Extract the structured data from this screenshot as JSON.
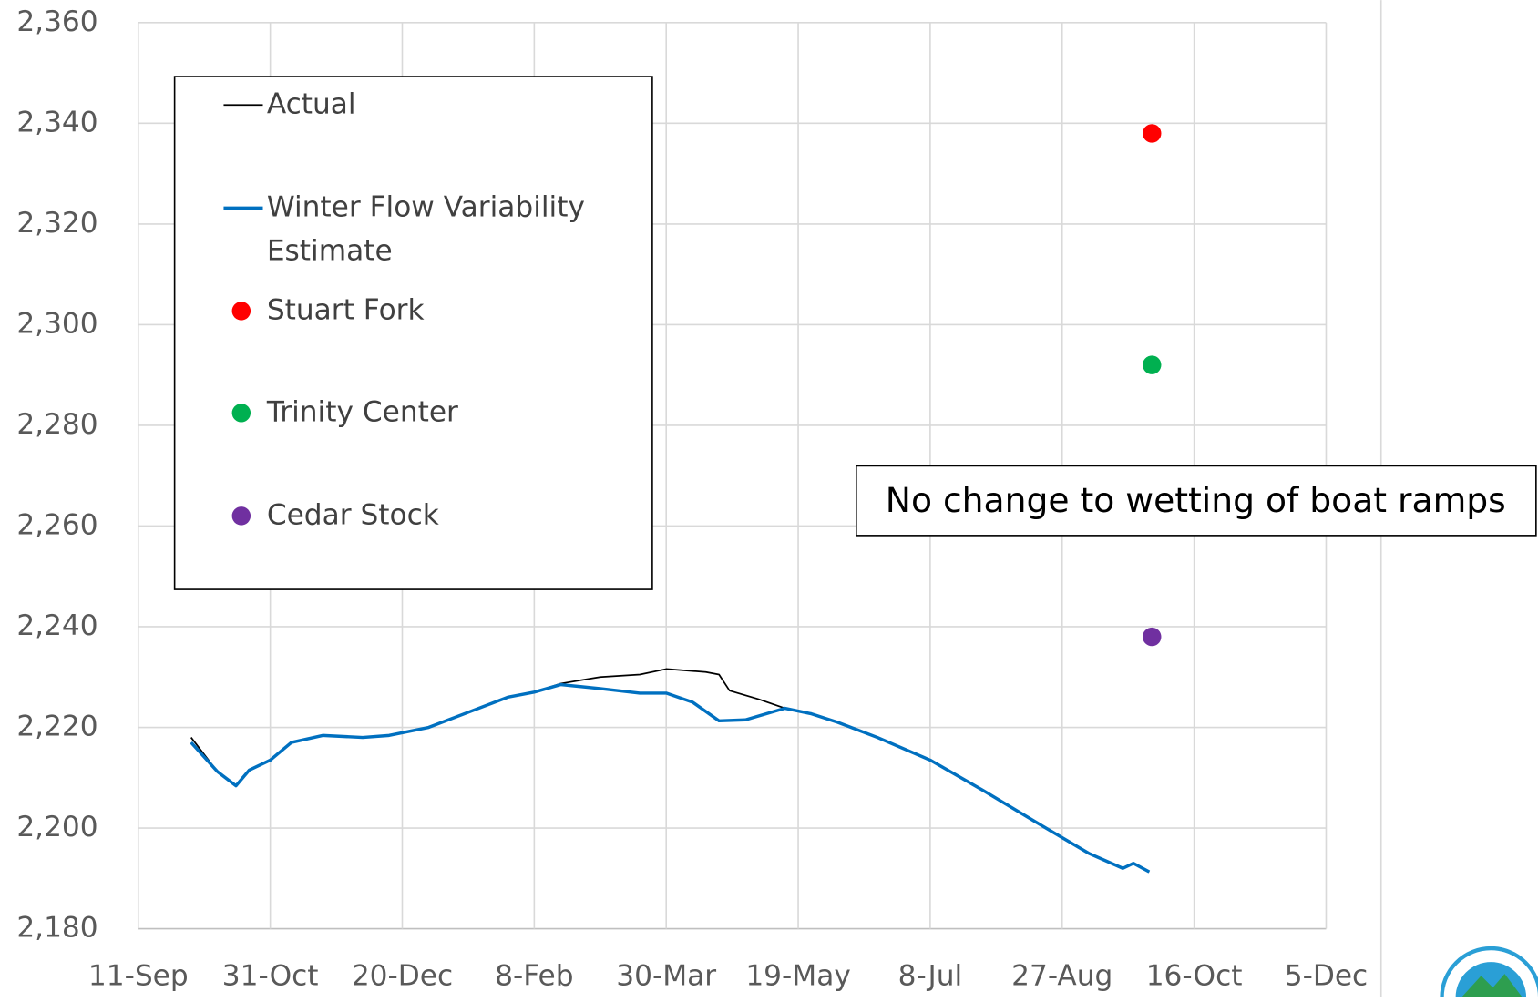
{
  "chart_data": {
    "type": "line",
    "xlim": [
      0,
      450
    ],
    "xticks": [
      {
        "value": 0,
        "label": "11-Sep"
      },
      {
        "value": 50,
        "label": "31-Oct"
      },
      {
        "value": 100,
        "label": "20-Dec"
      },
      {
        "value": 150,
        "label": "8-Feb"
      },
      {
        "value": 200,
        "label": "30-Mar"
      },
      {
        "value": 250,
        "label": "19-May"
      },
      {
        "value": 300,
        "label": "8-Jul"
      },
      {
        "value": 350,
        "label": "27-Aug"
      },
      {
        "value": 400,
        "label": "16-Oct"
      },
      {
        "value": 450,
        "label": "5-Dec"
      }
    ],
    "ylim": [
      2180,
      2360
    ],
    "yticks": [
      {
        "value": 2180,
        "label": "2,180"
      },
      {
        "value": 2200,
        "label": "2,200"
      },
      {
        "value": 2220,
        "label": "2,220"
      },
      {
        "value": 2240,
        "label": "2,240"
      },
      {
        "value": 2260,
        "label": "2,260"
      },
      {
        "value": 2280,
        "label": "2,280"
      },
      {
        "value": 2300,
        "label": "2,300"
      },
      {
        "value": 2320,
        "label": "2,320"
      },
      {
        "value": 2340,
        "label": "2,340"
      },
      {
        "value": 2360,
        "label": "2,360"
      }
    ],
    "grid": true,
    "legend": "upper left",
    "annotation": "No change to wetting of boat ramps",
    "series": [
      {
        "name": "Actual",
        "color": "#000000",
        "style": "line",
        "width": 1.6,
        "x": [
          20,
          30,
          37,
          42,
          50,
          58,
          70,
          85,
          95,
          110,
          125,
          140,
          150,
          160,
          175,
          190,
          200,
          215,
          220,
          224,
          235,
          245,
          255,
          265,
          280,
          300,
          320,
          340,
          360,
          373,
          377,
          383
        ],
        "values": [
          2218,
          2211.2,
          2208.4,
          2211.5,
          2213.5,
          2217,
          2218.4,
          2218,
          2218.4,
          2220,
          2223,
          2226,
          2227,
          2228.7,
          2230,
          2230.5,
          2231.6,
          2231,
          2230.5,
          2227.3,
          2225.6,
          2223.8,
          2222.7,
          2221,
          2218,
          2213.5,
          2207.5,
          2201.2,
          2195,
          2192,
          2193,
          2191.3
        ]
      },
      {
        "name": "Winter Flow Variability Estimate",
        "color": "#0070c0",
        "style": "line",
        "width": 3.2,
        "x": [
          20,
          30,
          37,
          42,
          50,
          58,
          70,
          85,
          95,
          110,
          125,
          140,
          150,
          160,
          175,
          190,
          200,
          210,
          220,
          230,
          245,
          255,
          265,
          280,
          300,
          320,
          340,
          360,
          373,
          377,
          383
        ],
        "values": [
          2217,
          2211.2,
          2208.4,
          2211.5,
          2213.5,
          2217,
          2218.4,
          2218,
          2218.4,
          2220,
          2223,
          2226,
          2227,
          2228.5,
          2227.7,
          2226.8,
          2226.8,
          2225,
          2221.3,
          2221.5,
          2223.8,
          2222.7,
          2221,
          2218,
          2213.5,
          2207.5,
          2201.2,
          2195,
          2192,
          2193,
          2191.3
        ]
      },
      {
        "name": "Stuart Fork",
        "color": "#ff0000",
        "style": "marker",
        "x": [
          384
        ],
        "values": [
          2338
        ]
      },
      {
        "name": "Trinity Center",
        "color": "#00b050",
        "style": "marker",
        "x": [
          384
        ],
        "values": [
          2292
        ]
      },
      {
        "name": "Cedar Stock",
        "color": "#7030a0",
        "style": "marker",
        "x": [
          384
        ],
        "values": [
          2238
        ]
      }
    ]
  }
}
